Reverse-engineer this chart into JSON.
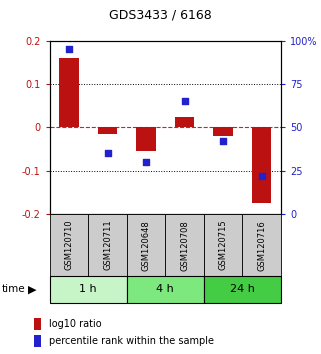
{
  "title": "GDS3433 / 6168",
  "samples": [
    "GSM120710",
    "GSM120711",
    "GSM120648",
    "GSM120708",
    "GSM120715",
    "GSM120716"
  ],
  "log10_ratio": [
    0.16,
    -0.015,
    -0.055,
    0.025,
    -0.02,
    -0.175
  ],
  "percentile_rank": [
    95,
    35,
    30,
    65,
    42,
    22
  ],
  "time_groups": [
    {
      "label": "1 h",
      "start": 0,
      "end": 2,
      "color": "#c8f5c8"
    },
    {
      "label": "4 h",
      "start": 2,
      "end": 4,
      "color": "#7de87d"
    },
    {
      "label": "24 h",
      "start": 4,
      "end": 6,
      "color": "#44cc44"
    }
  ],
  "ylim_left": [
    -0.2,
    0.2
  ],
  "ylim_right": [
    0,
    100
  ],
  "bar_color": "#bb1111",
  "dot_color": "#2222cc",
  "zero_line_color": "#cc2222",
  "sample_box_color": "#cccccc",
  "background_color": "#ffffff",
  "title_fontsize": 9,
  "bar_width": 0.5,
  "dot_size": 18
}
